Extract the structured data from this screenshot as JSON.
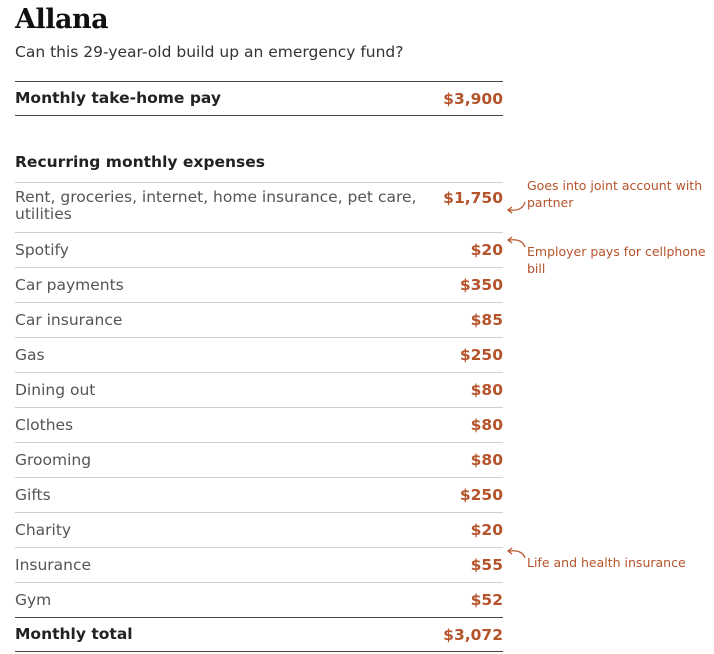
{
  "title": "Allana",
  "subtitle": "Can this 29-year-old build up an emergency fund?",
  "take_home": {
    "label": "Monthly take-home pay",
    "value": "$3,900"
  },
  "expenses_heading": "Recurring monthly expenses",
  "expenses": [
    {
      "label": "Rent, groceries, internet, home insurance, pet care, utilities",
      "value": "$1,750"
    },
    {
      "label": "Spotify",
      "value": "$20"
    },
    {
      "label": "Car payments",
      "value": "$350"
    },
    {
      "label": "Car insurance",
      "value": "$85"
    },
    {
      "label": "Gas",
      "value": "$250"
    },
    {
      "label": "Dining out",
      "value": "$80"
    },
    {
      "label": "Clothes",
      "value": "$80"
    },
    {
      "label": "Grooming",
      "value": "$80"
    },
    {
      "label": "Gifts",
      "value": "$250"
    },
    {
      "label": "Charity",
      "value": "$20"
    },
    {
      "label": "Insurance",
      "value": "$55"
    },
    {
      "label": "Gym",
      "value": "$52"
    }
  ],
  "total": {
    "label": "Monthly total",
    "value": "$3,072"
  },
  "notes": {
    "rent": "Goes into joint account with partner",
    "spotify": "Employer pays for cellphone bill",
    "insurance": "Life and health insurance"
  },
  "colors": {
    "accent": "#b5532a",
    "text": "#222222",
    "rule": "#cfcfcf"
  }
}
